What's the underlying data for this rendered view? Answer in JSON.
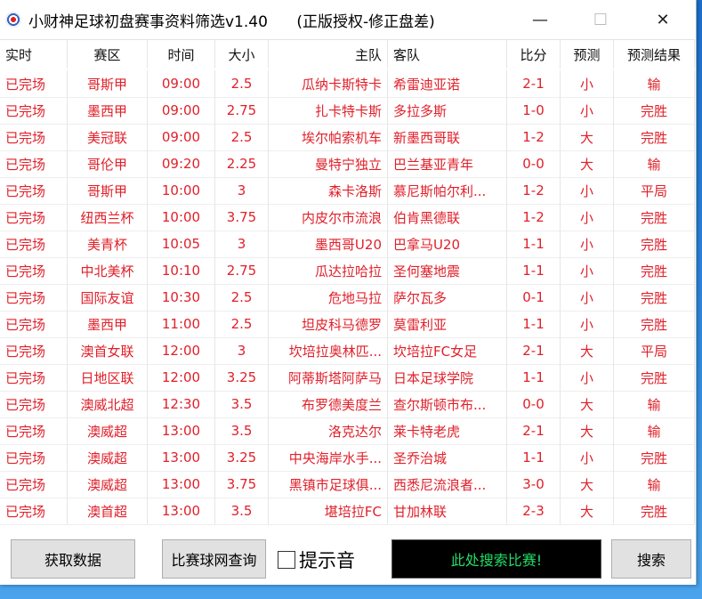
{
  "window": {
    "title": "小财神足球初盘赛事资料筛选v1.40      (正版授权-修正盘差)",
    "minimize": "—",
    "maximize": "☐",
    "close": "✕"
  },
  "columns": [
    "实时",
    "赛区",
    "时间",
    "大小",
    "主队",
    "客队",
    "比分",
    "预测",
    "预测结果"
  ],
  "rows": [
    [
      "已完场",
      "哥斯甲",
      "09:00",
      "2.5",
      "瓜纳卡斯特卡",
      "希雷迪亚诺",
      "2-1",
      "小",
      "输"
    ],
    [
      "已完场",
      "墨西甲",
      "09:00",
      "2.75",
      "扎卡特卡斯",
      "多拉多斯",
      "1-0",
      "小",
      "完胜"
    ],
    [
      "已完场",
      "美冠联",
      "09:00",
      "2.5",
      "埃尔帕索机车",
      "新墨西哥联",
      "1-2",
      "大",
      "完胜"
    ],
    [
      "已完场",
      "哥伦甲",
      "09:20",
      "2.25",
      "曼特宁独立",
      "巴兰基亚青年",
      "0-0",
      "大",
      "输"
    ],
    [
      "已完场",
      "哥斯甲",
      "10:00",
      "3",
      "森卡洛斯",
      "慕尼斯帕尔利...",
      "1-2",
      "小",
      "平局"
    ],
    [
      "已完场",
      "纽西兰杯",
      "10:00",
      "3.75",
      "内皮尔市流浪",
      "伯肯黑德联",
      "1-2",
      "小",
      "完胜"
    ],
    [
      "已完场",
      "美青杯",
      "10:05",
      "3",
      "墨西哥U20",
      "巴拿马U20",
      "1-1",
      "小",
      "完胜"
    ],
    [
      "已完场",
      "中北美杯",
      "10:10",
      "2.75",
      "瓜达拉哈拉",
      "圣何塞地震",
      "1-1",
      "小",
      "完胜"
    ],
    [
      "已完场",
      "国际友谊",
      "10:30",
      "2.5",
      "危地马拉",
      "萨尔瓦多",
      "0-1",
      "小",
      "完胜"
    ],
    [
      "已完场",
      "墨西甲",
      "11:00",
      "2.5",
      "坦皮科马德罗",
      "莫雷利亚",
      "1-1",
      "小",
      "完胜"
    ],
    [
      "已完场",
      "澳首女联",
      "12:00",
      "3",
      "坎培拉奥林匹...",
      "坎培拉FC女足",
      "2-1",
      "大",
      "平局"
    ],
    [
      "已完场",
      "日地区联",
      "12:00",
      "3.25",
      "阿蒂斯塔阿萨马",
      "日本足球学院",
      "1-1",
      "小",
      "完胜"
    ],
    [
      "已完场",
      "澳威北超",
      "12:30",
      "3.5",
      "布罗德美度兰",
      "查尔斯顿市布...",
      "0-0",
      "大",
      "输"
    ],
    [
      "已完场",
      "澳威超",
      "13:00",
      "3.5",
      "洛克达尔",
      "莱卡特老虎",
      "2-1",
      "大",
      "输"
    ],
    [
      "已完场",
      "澳威超",
      "13:00",
      "3.25",
      "中央海岸水手...",
      "圣乔治城",
      "1-1",
      "小",
      "完胜"
    ],
    [
      "已完场",
      "澳威超",
      "13:00",
      "3.75",
      "黑镇市足球俱...",
      "西悉尼流浪者...",
      "3-0",
      "大",
      "输"
    ],
    [
      "已完场",
      "澳首超",
      "13:00",
      "3.5",
      "堪培拉FC",
      "甘加林联",
      "2-3",
      "大",
      "完胜"
    ]
  ],
  "footer": {
    "fetch": "获取数据",
    "query": "比赛球网查询",
    "sound": "提示音",
    "sound_checked": false,
    "search_placeholder": "此处搜索比赛!",
    "search": "搜索"
  },
  "colors": {
    "row_text": "#e0202a",
    "search_text": "#22dd66",
    "search_bg": "#000000"
  }
}
